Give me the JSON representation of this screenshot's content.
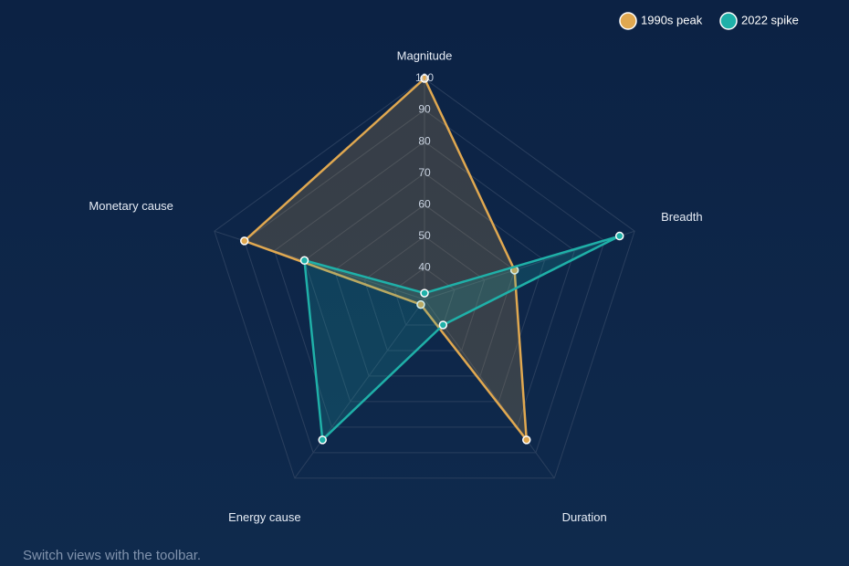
{
  "chart_data": {
    "type": "radar",
    "categories": [
      "Magnitude",
      "Breadth",
      "Duration",
      "Energy cause",
      "Monetary cause"
    ],
    "rlim": [
      30,
      100
    ],
    "rticks": [
      40,
      50,
      60,
      70,
      80,
      90,
      100
    ],
    "legend": "top-right",
    "series": [
      {
        "name": "1990s peak",
        "color": "#e0a850",
        "values": [
          100,
          60,
          85,
          32,
          90
        ]
      },
      {
        "name": "2022 spike",
        "color": "#1fb0a8",
        "values": [
          32,
          95,
          40,
          85,
          70
        ]
      }
    ]
  },
  "footer": "Switch views with the toolbar."
}
